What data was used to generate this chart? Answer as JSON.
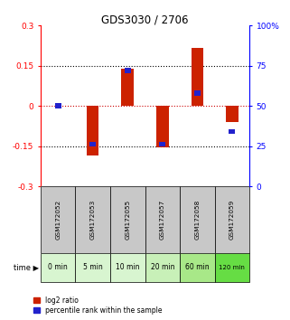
{
  "title": "GDS3030 / 2706",
  "samples": [
    "GSM172052",
    "GSM172053",
    "GSM172055",
    "GSM172057",
    "GSM172058",
    "GSM172059"
  ],
  "time_labels": [
    "0 min",
    "5 min",
    "10 min",
    "20 min",
    "60 min",
    "120 min"
  ],
  "log2_ratio": [
    0.0,
    -0.185,
    0.14,
    -0.155,
    0.215,
    -0.06
  ],
  "percentile_rank": [
    50,
    26,
    72,
    26,
    58,
    34
  ],
  "ylim_left": [
    -0.3,
    0.3
  ],
  "ylim_right": [
    0,
    100
  ],
  "yticks_left": [
    -0.3,
    -0.15,
    0,
    0.15,
    0.3
  ],
  "yticks_right": [
    0,
    25,
    50,
    75,
    100
  ],
  "bar_color_red": "#cc2200",
  "bar_color_blue": "#2222cc",
  "zero_line_color": "#cc0000",
  "dotted_line_color": "#000000",
  "bg_color_gray": "#c8c8c8",
  "time_bg_colors": [
    "#d8f5d0",
    "#d8f5d0",
    "#d8f5d0",
    "#c8f0b8",
    "#a8e888",
    "#66dd44"
  ],
  "bar_width": 0.35,
  "blue_bar_width": 0.18
}
